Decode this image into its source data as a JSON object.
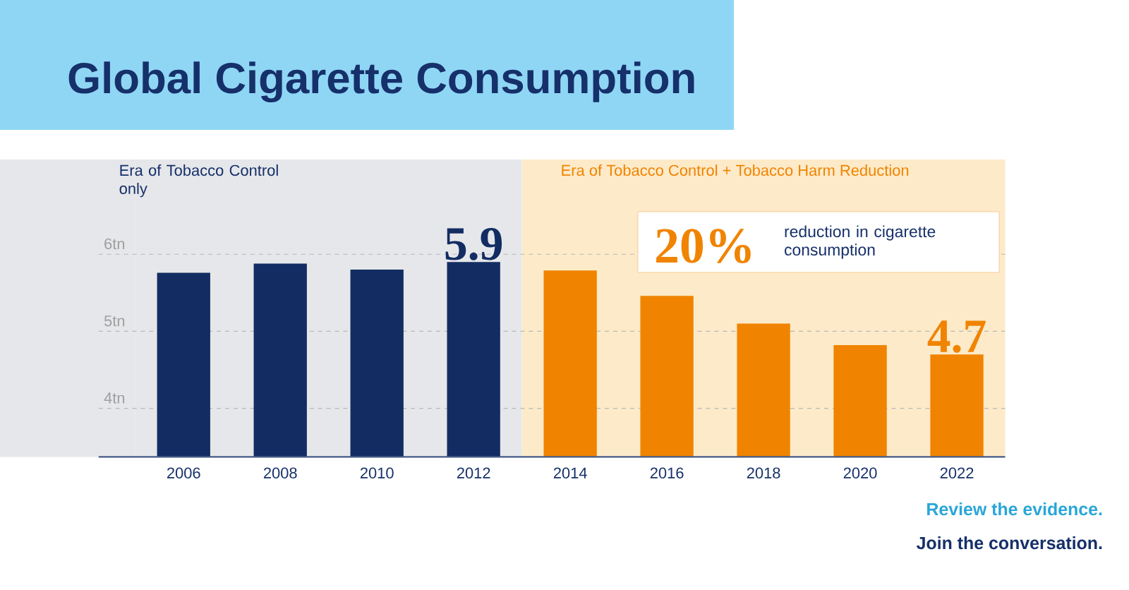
{
  "chart_data": {
    "type": "bar",
    "title": "Global Cigarette Consumption",
    "categories": [
      "2006",
      "2008",
      "2010",
      "2012",
      "2014",
      "2016",
      "2018",
      "2020",
      "2022"
    ],
    "values": [
      5.76,
      5.88,
      5.8,
      5.9,
      5.79,
      5.46,
      5.1,
      4.82,
      4.7
    ],
    "colors": [
      "#132d63",
      "#132d63",
      "#132d63",
      "#132d63",
      "#f08400",
      "#f08400",
      "#f08400",
      "#f08400",
      "#f08400"
    ],
    "value_labels": [
      null,
      null,
      null,
      "5.9",
      null,
      null,
      null,
      null,
      "4.7"
    ],
    "ylim": [
      3.37,
      7.23
    ],
    "yticks": [
      {
        "value": 4,
        "label": "4tn"
      },
      {
        "value": 5,
        "label": "5tn"
      },
      {
        "value": 6,
        "label": "6tn"
      }
    ],
    "grid": "y",
    "bands": [
      {
        "axis": "x",
        "from": "2006",
        "to": "2012",
        "label": "Era of Tobacco Control only",
        "color": "#e6e7ea"
      },
      {
        "axis": "x",
        "from": "2014",
        "to": "2022",
        "label": "Era of Tobacco Control + Tobacco Harm Reduction",
        "color": "#fdeac9"
      }
    ],
    "annotations": [
      "20%",
      "reduction in cigarette consumption",
      "Review the evidence.",
      "Join the conversation."
    ]
  }
}
